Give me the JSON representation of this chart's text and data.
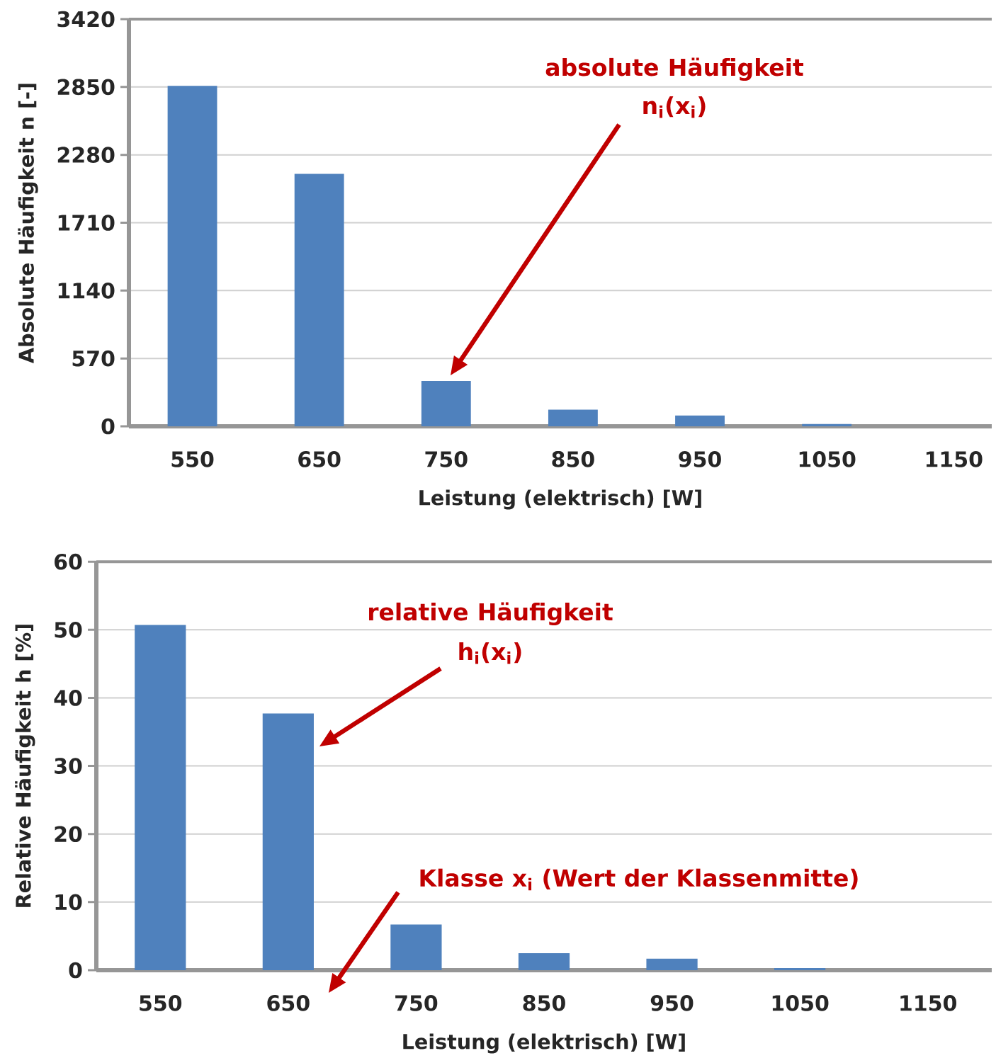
{
  "chart_data": [
    {
      "type": "bar",
      "categories": [
        "550",
        "650",
        "750",
        "850",
        "950",
        "1050",
        "1150"
      ],
      "values": [
        2860,
        2120,
        380,
        140,
        90,
        20,
        0
      ],
      "color": "#4f81bd",
      "xlabel": "Leistung (elektrisch) [W]",
      "ylabel": "Absolute Häufigkeit n [-]",
      "ylim": [
        0,
        3420
      ],
      "yticks": [
        0,
        570,
        1140,
        1710,
        2280,
        2850,
        3420
      ],
      "grid": "y",
      "annotations": [
        "absolute Häufigkeit n$_{i}$(x$_{i}$)"
      ]
    },
    {
      "type": "bar",
      "categories": [
        "550",
        "650",
        "750",
        "850",
        "950",
        "1050",
        "1150"
      ],
      "values": [
        50.7,
        37.7,
        6.7,
        2.5,
        1.7,
        0.3,
        0
      ],
      "color": "#4f81bd",
      "xlabel": "Leistung (elektrisch) [W]",
      "ylabel": "Relative Häufigkeit h [%]",
      "ylim": [
        0,
        60
      ],
      "yticks": [
        0,
        10,
        20,
        30,
        40,
        50,
        60
      ],
      "grid": "y",
      "annotations": [
        "relative Häufigkeit h$_{i}$(x$_{i}$)",
        "Klasse x$_{i}$ (Wert der Klassenmitte)"
      ]
    }
  ]
}
